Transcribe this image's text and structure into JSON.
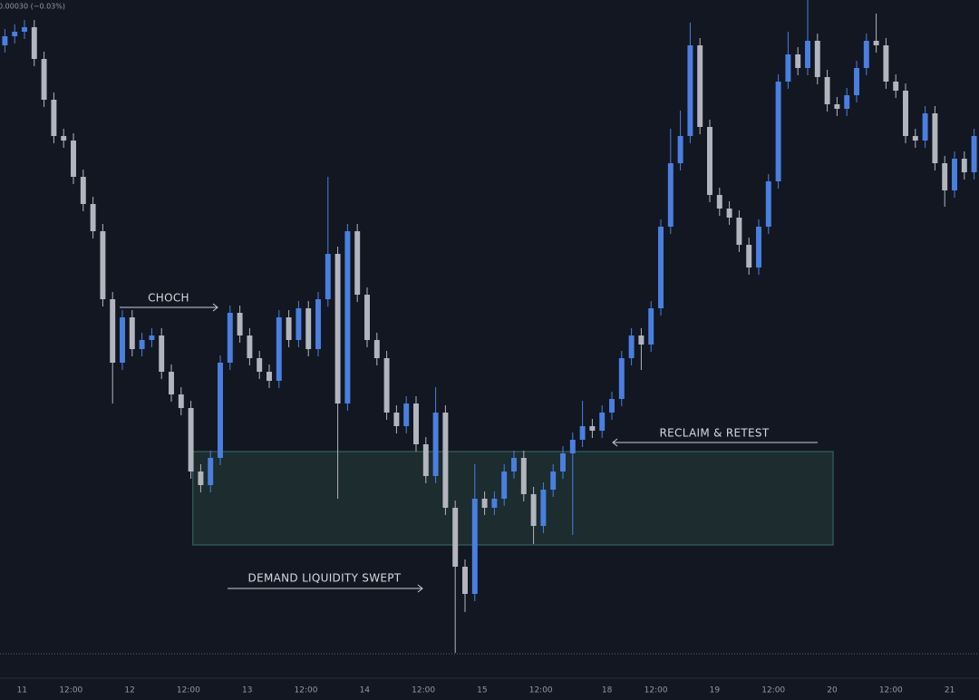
{
  "chart_data": {
    "type": "candlestick",
    "header": "0.00030 (−0.03%)",
    "x": [
      0,
      2,
      4,
      6,
      8,
      10,
      12,
      14,
      16,
      18,
      20,
      22,
      24,
      26,
      28,
      30,
      32,
      34,
      36,
      38,
      40,
      42,
      44,
      46,
      48,
      50,
      52,
      54,
      56,
      58,
      60,
      62,
      64,
      66,
      68,
      70,
      72,
      74,
      76,
      78,
      80,
      82,
      84,
      86,
      88,
      90,
      92,
      94,
      96,
      98,
      100,
      102,
      104,
      106,
      108,
      110,
      112,
      114,
      116,
      118,
      120,
      122,
      124,
      126,
      128,
      130,
      132,
      134,
      136,
      138,
      140,
      142,
      144,
      146,
      148,
      150,
      152,
      154,
      156,
      158,
      160,
      162,
      164,
      166,
      168,
      170,
      172,
      174,
      176,
      178,
      180,
      182,
      184,
      186,
      188,
      190,
      192,
      194,
      196,
      198
    ],
    "open": [
      698,
      708,
      713,
      718,
      683,
      638,
      598,
      593,
      553,
      523,
      493,
      418,
      348,
      398,
      363,
      373,
      378,
      338,
      313,
      298,
      228,
      213,
      243,
      348,
      403,
      378,
      353,
      338,
      328,
      398,
      373,
      408,
      363,
      418,
      468,
      303,
      493,
      423,
      373,
      353,
      293,
      278,
      303,
      258,
      223,
      293,
      188,
      123,
      93,
      198,
      188,
      198,
      228,
      243,
      203,
      168,
      208,
      228,
      248,
      263,
      278,
      273,
      293,
      308,
      353,
      378,
      368,
      408,
      498,
      568,
      598,
      698,
      608,
      533,
      518,
      508,
      478,
      453,
      498,
      548,
      658,
      688,
      673,
      703,
      663,
      633,
      628,
      643,
      673,
      703,
      698,
      658,
      648,
      598,
      593,
      623,
      568,
      538,
      573,
      558
    ],
    "high": [
      716,
      721,
      726,
      726,
      691,
      646,
      606,
      601,
      561,
      531,
      501,
      426,
      406,
      406,
      381,
      386,
      386,
      346,
      321,
      306,
      236,
      251,
      356,
      411,
      411,
      386,
      361,
      346,
      406,
      406,
      416,
      416,
      426,
      553,
      476,
      501,
      501,
      431,
      381,
      361,
      301,
      311,
      311,
      266,
      321,
      301,
      196,
      131,
      236,
      206,
      206,
      236,
      251,
      251,
      211,
      216,
      236,
      256,
      271,
      306,
      286,
      301,
      316,
      361,
      386,
      386,
      416,
      506,
      606,
      626,
      723,
      706,
      616,
      541,
      526,
      516,
      486,
      506,
      556,
      666,
      713,
      696,
      748,
      711,
      671,
      641,
      651,
      681,
      711,
      733,
      706,
      666,
      656,
      606,
      631,
      631,
      576,
      581,
      581,
      606
    ],
    "low": [
      690,
      700,
      705,
      675,
      630,
      590,
      585,
      545,
      515,
      485,
      410,
      303,
      340,
      355,
      355,
      365,
      330,
      305,
      290,
      220,
      205,
      205,
      235,
      340,
      370,
      345,
      330,
      320,
      320,
      365,
      365,
      355,
      355,
      410,
      198,
      295,
      415,
      365,
      345,
      285,
      270,
      270,
      250,
      215,
      215,
      180,
      28,
      73,
      85,
      180,
      180,
      190,
      220,
      195,
      148,
      160,
      200,
      220,
      158,
      255,
      265,
      265,
      285,
      300,
      345,
      340,
      360,
      400,
      490,
      560,
      590,
      600,
      525,
      510,
      500,
      470,
      445,
      445,
      490,
      540,
      650,
      665,
      665,
      655,
      625,
      620,
      620,
      635,
      665,
      690,
      650,
      640,
      590,
      585,
      585,
      560,
      520,
      530,
      550,
      550
    ],
    "close": [
      708,
      713,
      718,
      683,
      638,
      598,
      593,
      553,
      523,
      493,
      418,
      348,
      398,
      363,
      373,
      378,
      338,
      313,
      298,
      228,
      213,
      243,
      348,
      403,
      378,
      353,
      338,
      328,
      398,
      373,
      408,
      363,
      418,
      468,
      303,
      493,
      423,
      373,
      353,
      293,
      278,
      303,
      258,
      223,
      293,
      188,
      123,
      93,
      198,
      188,
      198,
      228,
      243,
      203,
      168,
      208,
      228,
      248,
      263,
      278,
      273,
      293,
      308,
      353,
      378,
      368,
      408,
      498,
      568,
      598,
      698,
      608,
      533,
      518,
      508,
      478,
      453,
      498,
      548,
      658,
      688,
      673,
      703,
      663,
      633,
      628,
      643,
      673,
      703,
      698,
      658,
      648,
      598,
      593,
      623,
      568,
      538,
      573,
      558,
      598
    ],
    "up_color": "#4a7fe0",
    "down_color": "#b2b5be",
    "xlim": [
      -1,
      199
    ],
    "ylim": [
      0,
      748
    ],
    "xticks": [
      {
        "value": 3.5,
        "label": "11"
      },
      {
        "value": 13.5,
        "label": "12:00"
      },
      {
        "value": 25.5,
        "label": "12"
      },
      {
        "value": 37.5,
        "label": "12:00"
      },
      {
        "value": 49.5,
        "label": "13"
      },
      {
        "value": 61.5,
        "label": "12:00"
      },
      {
        "value": 73.5,
        "label": "14"
      },
      {
        "value": 85.5,
        "label": "12:00"
      },
      {
        "value": 97.5,
        "label": "15"
      },
      {
        "value": 109.5,
        "label": "12:00"
      },
      {
        "value": 123,
        "label": "18"
      },
      {
        "value": 133,
        "label": "12:00"
      },
      {
        "value": 145,
        "label": "19"
      },
      {
        "value": 157,
        "label": "12:00"
      },
      {
        "value": 169,
        "label": "20"
      },
      {
        "value": 181,
        "label": "12:00"
      },
      {
        "value": 193,
        "label": "21"
      }
    ],
    "price_line": 27,
    "zone": {
      "x": [
        38.4,
        169.2
      ],
      "y": [
        147,
        250
      ]
    },
    "annotations": [
      "CHOCH",
      "DEMAND LIQUIDITY SWEPT",
      "RECLAIM & RETEST"
    ]
  }
}
